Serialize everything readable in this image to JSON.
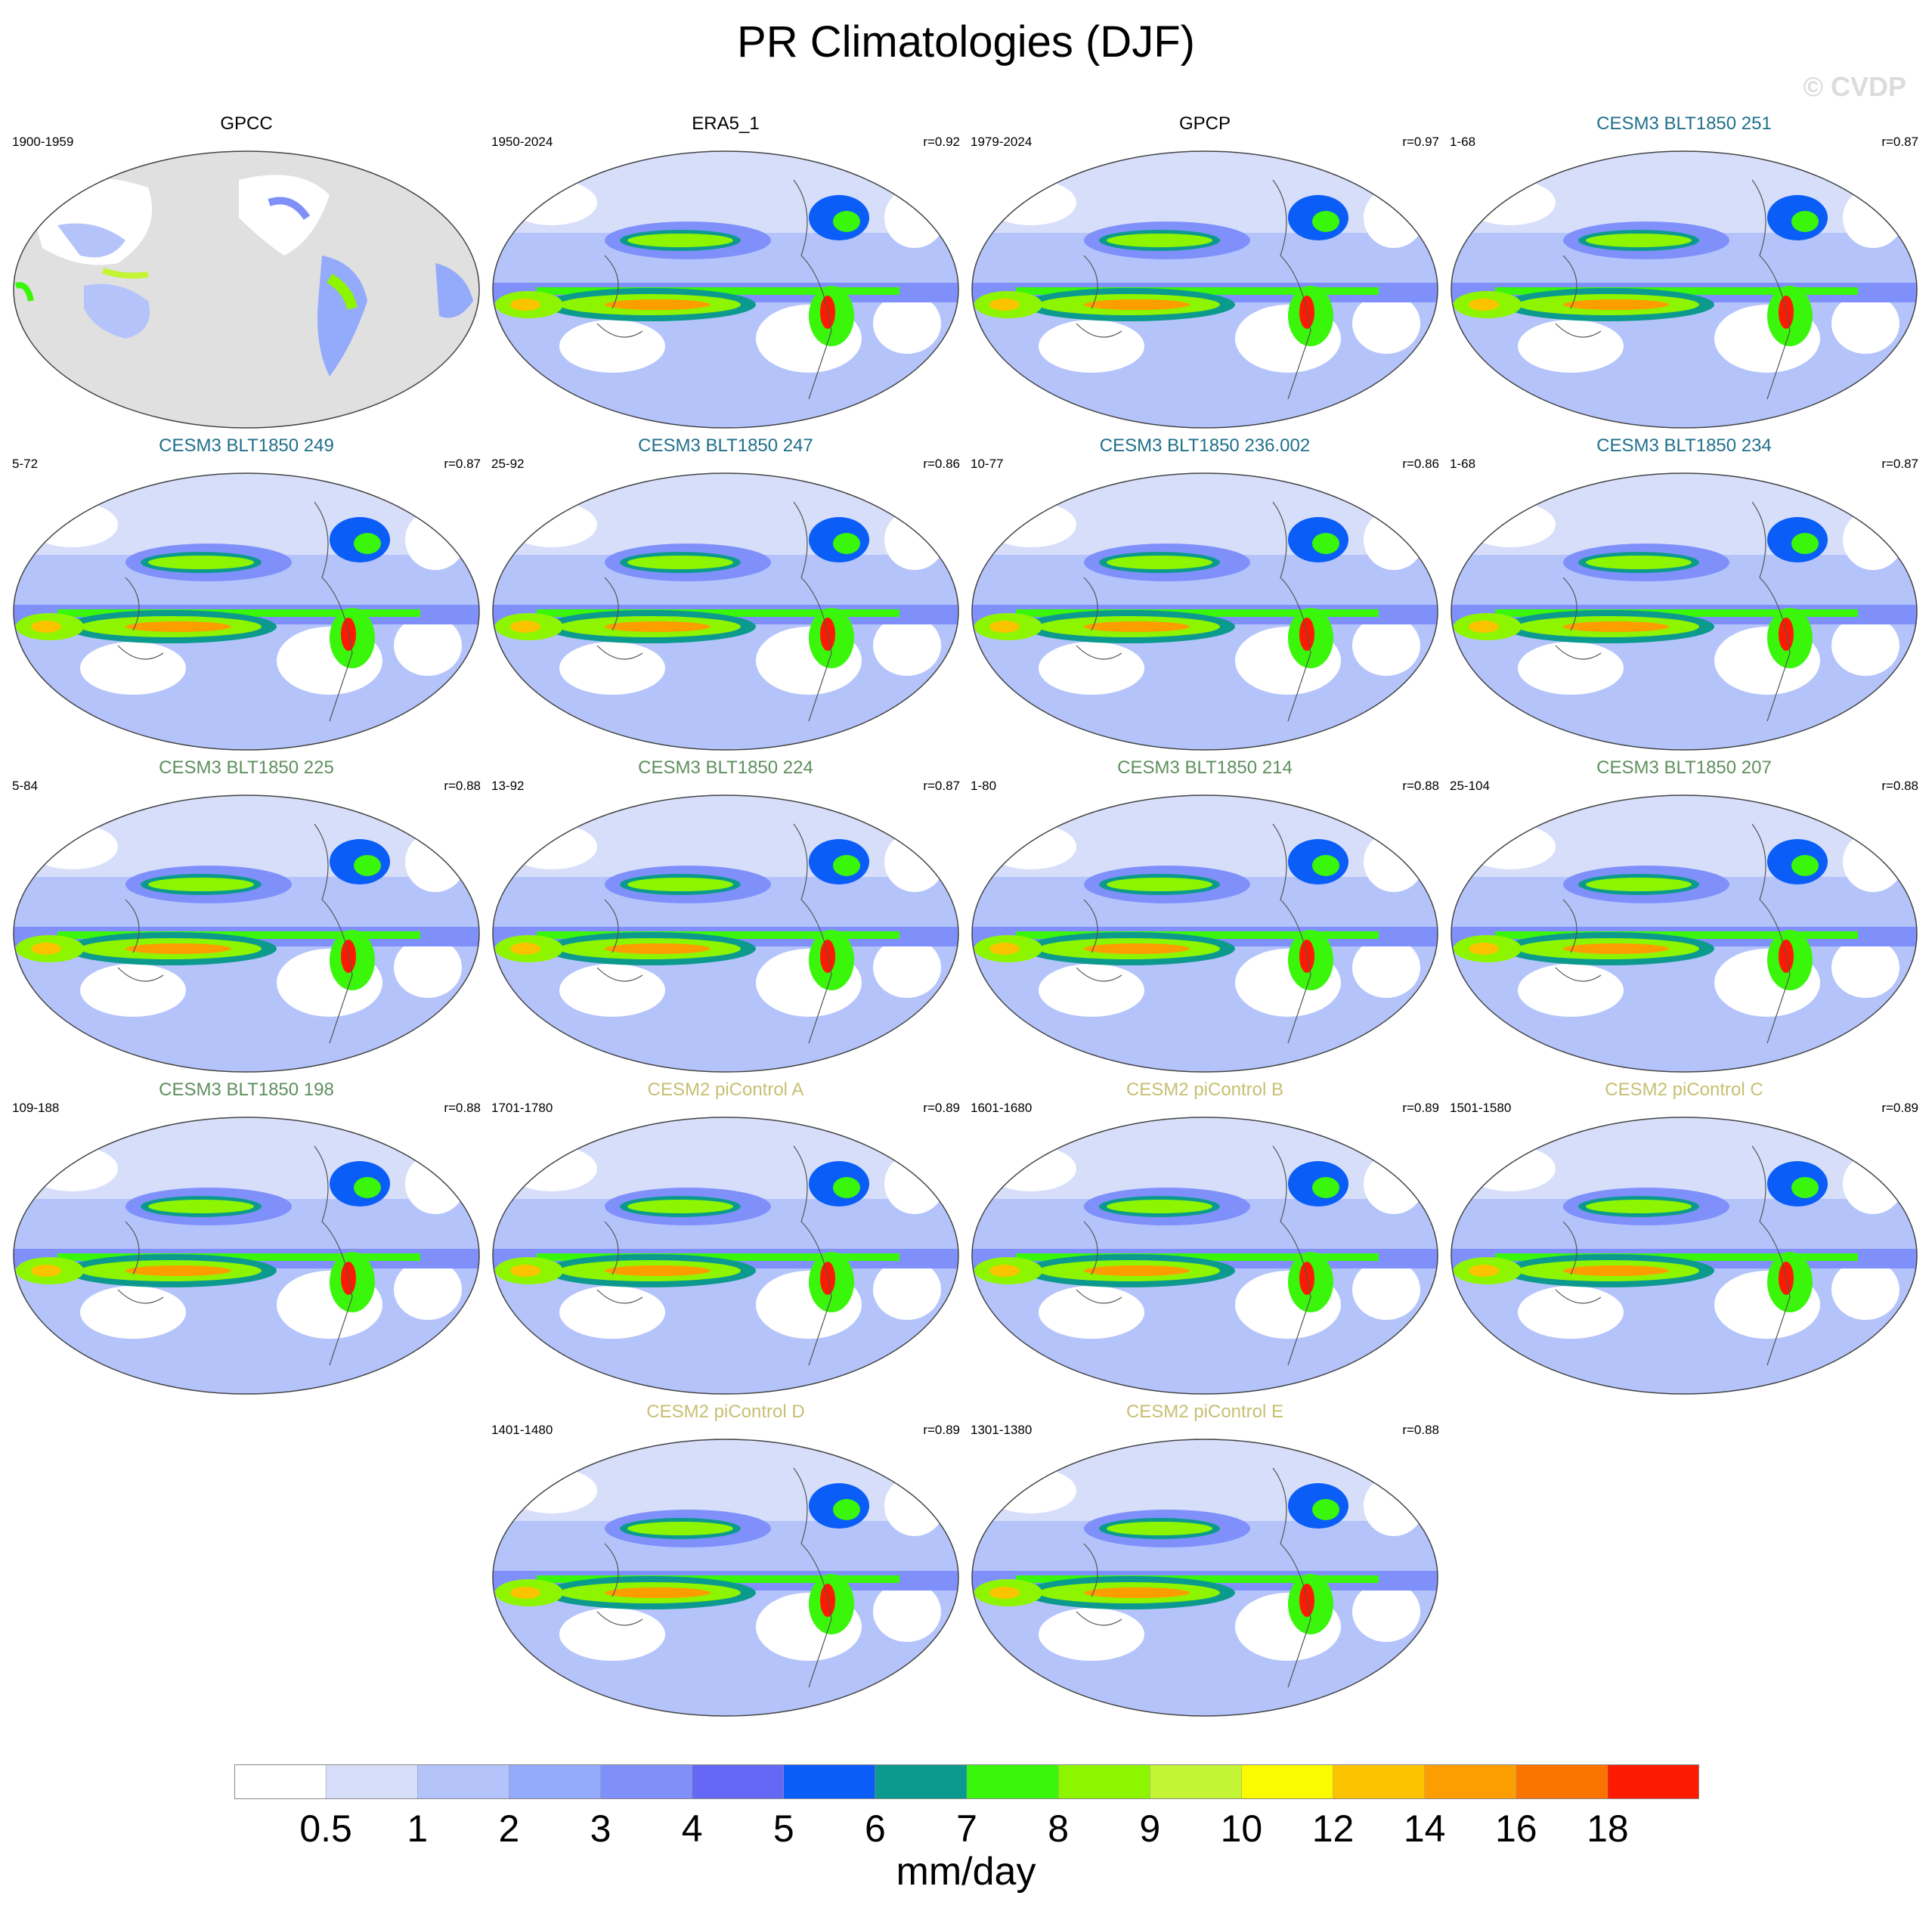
{
  "title": "PR Climatologies (DJF)",
  "watermark": "© CVDP",
  "colors": {
    "cesm3_blue": "#1f6f8b",
    "cesm3_green": "#5e8f5e",
    "cesm2_tan": "#c8bf72",
    "obs": "#000000",
    "land_gray": "#e0e0e0"
  },
  "panels": [
    {
      "name": "GPCC",
      "left": "1900-1959",
      "right": "",
      "color": "obs",
      "type": "obs_land"
    },
    {
      "name": "ERA5_1",
      "left": "1950-2024",
      "right": "r=0.92",
      "color": "obs",
      "type": "full"
    },
    {
      "name": "GPCP",
      "left": "1979-2024",
      "right": "r=0.97",
      "color": "obs",
      "type": "full"
    },
    {
      "name": "CESM3 BLT1850 251",
      "left": "1-68",
      "right": "r=0.87",
      "color": "cesm3_blue",
      "type": "full"
    },
    {
      "name": "CESM3 BLT1850 249",
      "left": "5-72",
      "right": "r=0.87",
      "color": "cesm3_blue",
      "type": "full"
    },
    {
      "name": "CESM3 BLT1850 247",
      "left": "25-92",
      "right": "r=0.86",
      "color": "cesm3_blue",
      "type": "full"
    },
    {
      "name": "CESM3 BLT1850 236.002",
      "left": "10-77",
      "right": "r=0.86",
      "color": "cesm3_blue",
      "type": "full"
    },
    {
      "name": "CESM3 BLT1850 234",
      "left": "1-68",
      "right": "r=0.87",
      "color": "cesm3_blue",
      "type": "full"
    },
    {
      "name": "CESM3 BLT1850 225",
      "left": "5-84",
      "right": "r=0.88",
      "color": "cesm3_green",
      "type": "full"
    },
    {
      "name": "CESM3 BLT1850 224",
      "left": "13-92",
      "right": "r=0.87",
      "color": "cesm3_green",
      "type": "full"
    },
    {
      "name": "CESM3 BLT1850 214",
      "left": "1-80",
      "right": "r=0.88",
      "color": "cesm3_green",
      "type": "full"
    },
    {
      "name": "CESM3 BLT1850 207",
      "left": "25-104",
      "right": "r=0.88",
      "color": "cesm3_green",
      "type": "full"
    },
    {
      "name": "CESM3 BLT1850 198",
      "left": "109-188",
      "right": "r=0.88",
      "color": "cesm3_green",
      "type": "full"
    },
    {
      "name": "CESM2 piControl A",
      "left": "1701-1780",
      "right": "r=0.89",
      "color": "cesm2_tan",
      "type": "full"
    },
    {
      "name": "CESM2 piControl B",
      "left": "1601-1680",
      "right": "r=0.89",
      "color": "cesm2_tan",
      "type": "full"
    },
    {
      "name": "CESM2 piControl C",
      "left": "1501-1580",
      "right": "r=0.89",
      "color": "cesm2_tan",
      "type": "full"
    },
    {
      "name": "CESM2 piControl D",
      "left": "1401-1480",
      "right": "r=0.89",
      "color": "cesm2_tan",
      "type": "full"
    },
    {
      "name": "CESM2 piControl E",
      "left": "1301-1380",
      "right": "r=0.88",
      "color": "cesm2_tan",
      "type": "full"
    }
  ],
  "colorbar": {
    "colors": [
      "#ffffff",
      "#d6defa",
      "#b4c4fb",
      "#94aafb",
      "#8090fb",
      "#6468f4",
      "#0a5df7",
      "#0c9a8f",
      "#3af60a",
      "#8df500",
      "#c4f534",
      "#fafa00",
      "#fcc400",
      "#fc9e00",
      "#fc7400",
      "#fc1a00"
    ],
    "labels": [
      "0.5",
      "1",
      "2",
      "3",
      "4",
      "5",
      "6",
      "7",
      "8",
      "9",
      "10",
      "12",
      "14",
      "16",
      "18"
    ],
    "units": "mm/day"
  }
}
